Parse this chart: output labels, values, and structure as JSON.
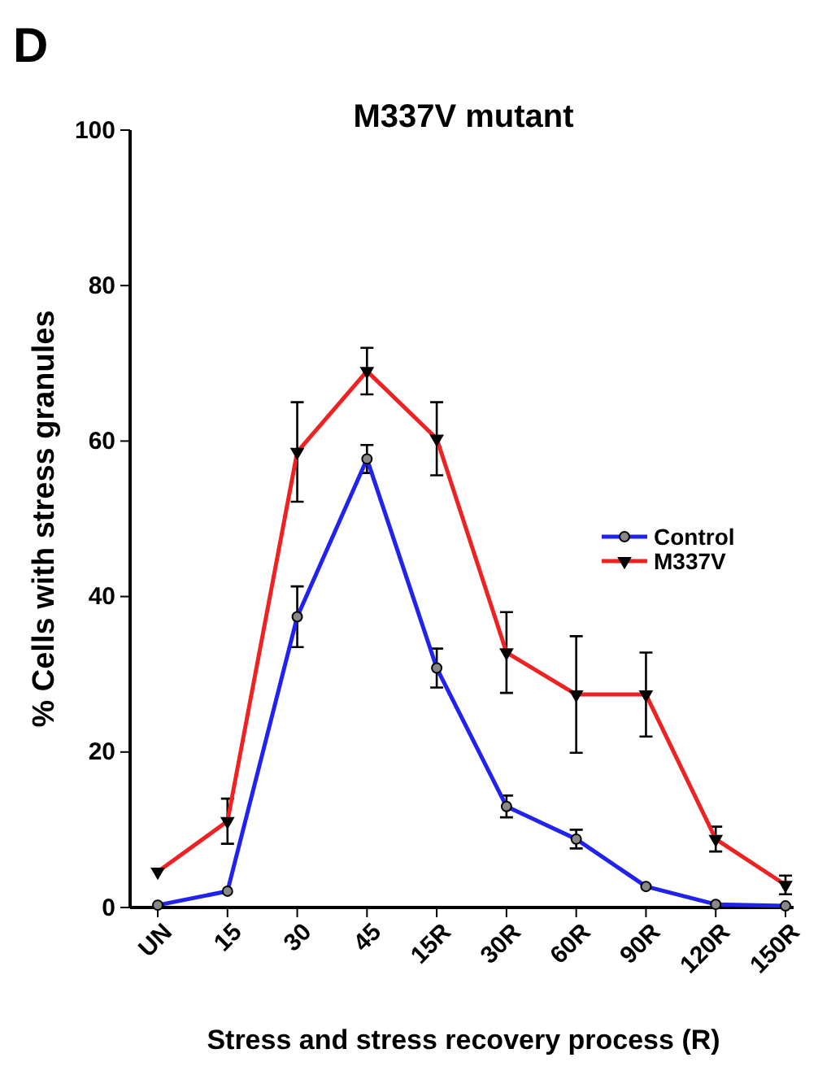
{
  "chart_data": {
    "type": "line",
    "title": "M337V mutant",
    "xlabel": "Stress and stress recovery process (R)",
    "ylabel": "% Cells with stress granules",
    "annotations": [
      "D"
    ],
    "categories": [
      "UN",
      "15",
      "30",
      "45",
      "15R",
      "30R",
      "60R",
      "90R",
      "120R",
      "150R"
    ],
    "series": [
      {
        "name": "Control",
        "color": "#2222ee",
        "marker": "circle",
        "values": [
          0.3,
          2.1,
          37.4,
          57.7,
          30.8,
          13,
          8.8,
          2.7,
          0.4,
          0.2
        ],
        "errors": [
          null,
          null,
          3.9,
          1.8,
          2.5,
          1.4,
          1.2,
          null,
          null,
          null
        ]
      },
      {
        "name": "M337V",
        "color": "#ee2222",
        "marker": "triangle",
        "values": [
          4.6,
          11.1,
          58.6,
          69.0,
          60.3,
          32.8,
          27.4,
          27.4,
          8.8,
          2.9
        ],
        "errors": [
          null,
          2.9,
          6.4,
          3,
          4.7,
          5.2,
          7.5,
          5.4,
          1.6,
          1.2
        ]
      }
    ],
    "ylim": [
      0,
      100
    ],
    "yticks": [
      0,
      20,
      40,
      60,
      80,
      100
    ],
    "legend": "right",
    "grid": false
  }
}
